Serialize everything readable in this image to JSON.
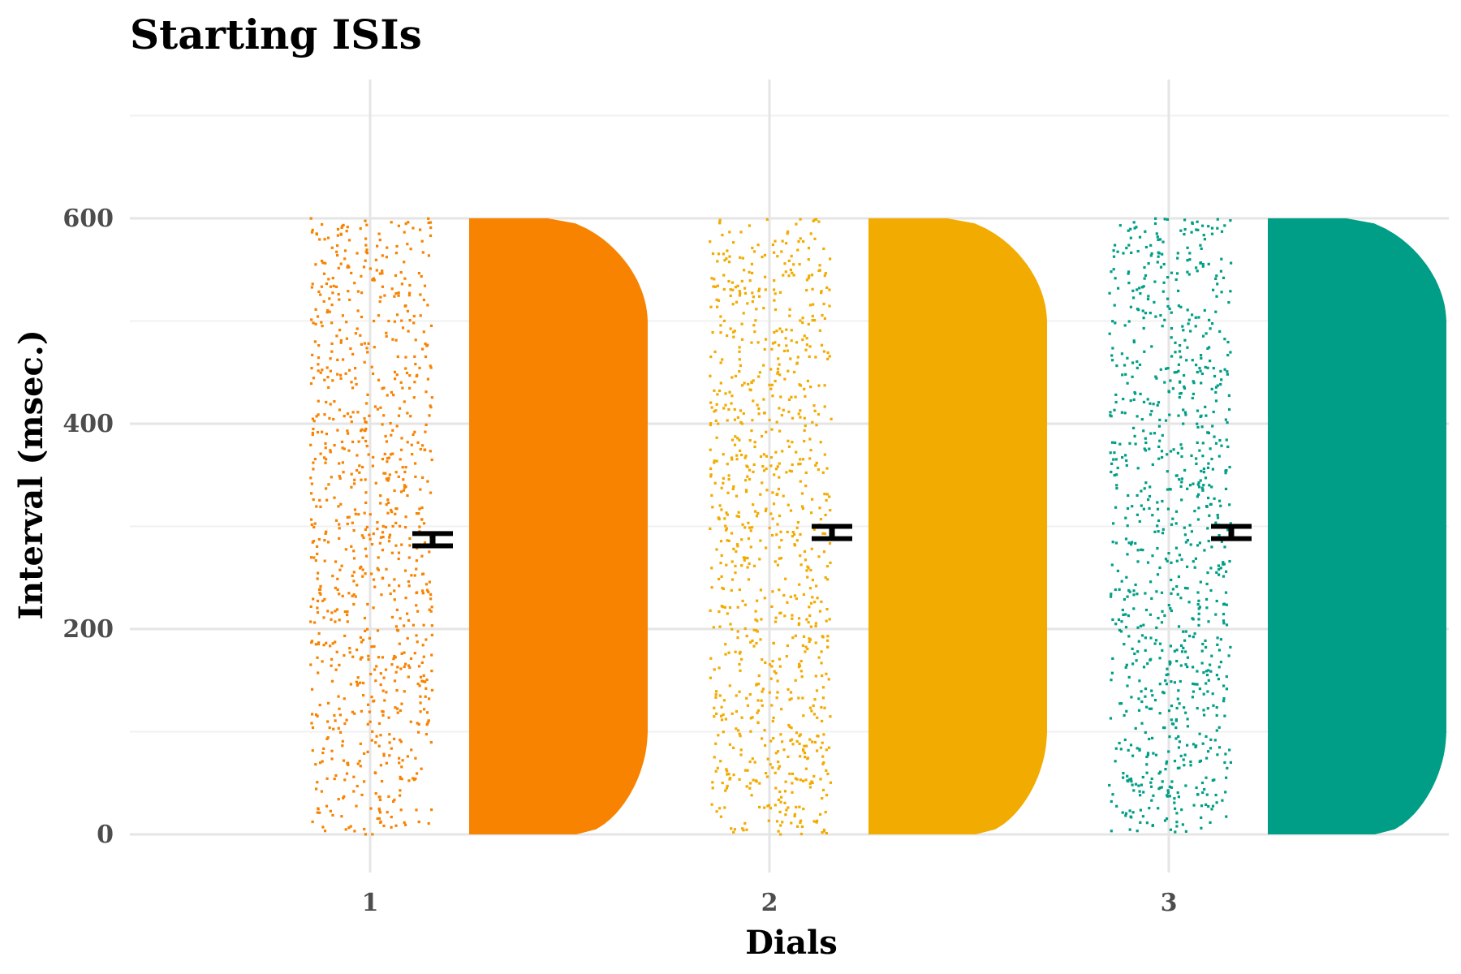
{
  "chart_data": {
    "type": "raincloud",
    "title": "Starting ISIs",
    "xlabel": "Dials",
    "ylabel": "Interval (msec.)",
    "categories": [
      "1",
      "2",
      "3"
    ],
    "yticks": [
      0,
      200,
      400,
      600
    ],
    "ylim": [
      -30,
      710
    ],
    "grid": true,
    "legend": "none",
    "series": [
      {
        "category": "1",
        "color": "#f78301",
        "mean": 287,
        "se": 6,
        "range": [
          0,
          600
        ],
        "distribution": "approximately uniform",
        "point_count": 900
      },
      {
        "category": "2",
        "color": "#f2ab00",
        "mean": 294,
        "se": 6,
        "range": [
          0,
          600
        ],
        "distribution": "approximately uniform",
        "point_count": 900
      },
      {
        "category": "3",
        "color": "#009e86",
        "mean": 294,
        "se": 6,
        "range": [
          0,
          600
        ],
        "distribution": "approximately uniform",
        "point_count": 900
      }
    ]
  }
}
